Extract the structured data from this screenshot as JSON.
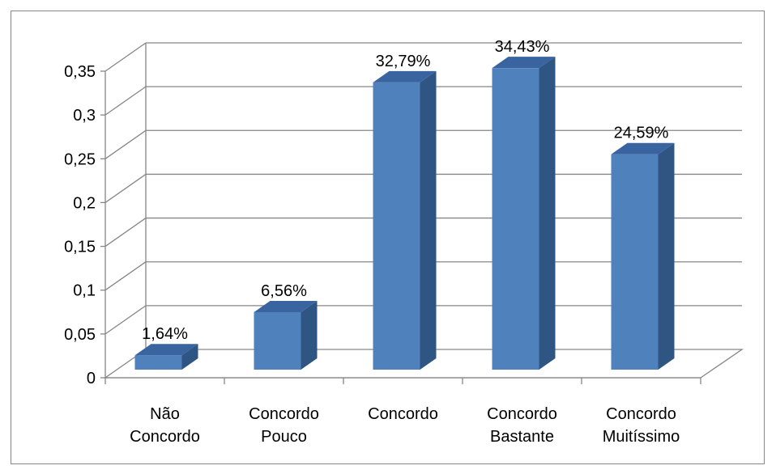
{
  "chart_data": {
    "type": "bar",
    "style": "3d-column",
    "categories": [
      [
        "Não",
        "Concordo"
      ],
      [
        "Concordo",
        "Pouco"
      ],
      [
        "Concordo"
      ],
      [
        "Concordo",
        "Bastante"
      ],
      [
        "Concordo",
        "Muitíssimo"
      ]
    ],
    "values": [
      0.0164,
      0.0656,
      0.3279,
      0.3443,
      0.2459
    ],
    "data_labels": [
      "1,64%",
      "6,56%",
      "32,79%",
      "34,43%",
      "24,59%"
    ],
    "y_ticks": [
      "0",
      "0,05",
      "0,1",
      "0,15",
      "0,2",
      "0,25",
      "0,3",
      "0,35"
    ],
    "ylim": [
      0,
      0.35
    ],
    "grid": true,
    "legend": "none",
    "colors": {
      "front": "#4f81bd",
      "side": "#2f5583",
      "top": "#3a64a0",
      "grid": "#868686",
      "border": "#868686"
    }
  }
}
